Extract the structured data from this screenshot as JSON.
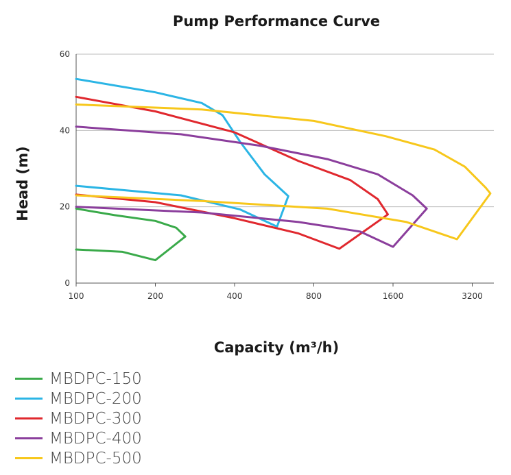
{
  "chart_data": {
    "type": "line",
    "title": "Pump Performance Curve",
    "xlabel": "Capacity (m³/h)",
    "ylabel": "Head (m)",
    "x_scale": "log2",
    "xlim": [
      100,
      4500
    ],
    "ylim": [
      0,
      60
    ],
    "x_ticks": [
      100,
      200,
      400,
      800,
      1600,
      3200
    ],
    "y_ticks": [
      0,
      20,
      40,
      60
    ],
    "grid": "horizontal",
    "legend_position": "bottom-left",
    "series": [
      {
        "name": "MBDPC-150",
        "color": "#3aaa4a",
        "points": [
          [
            100,
            19.5
          ],
          [
            140,
            17.8
          ],
          [
            200,
            16.3
          ],
          [
            240,
            14.5
          ],
          [
            260,
            12.2
          ],
          [
            200,
            6.0
          ],
          [
            150,
            8.2
          ],
          [
            100,
            8.8
          ]
        ]
      },
      {
        "name": "MBDPC-200",
        "color": "#2bb5e5",
        "points": [
          [
            100,
            53.5
          ],
          [
            200,
            50.0
          ],
          [
            300,
            47.2
          ],
          [
            360,
            44.0
          ],
          [
            420,
            37.0
          ],
          [
            520,
            28.5
          ],
          [
            640,
            22.8
          ],
          [
            580,
            14.8
          ],
          [
            420,
            19.3
          ],
          [
            250,
            23.0
          ],
          [
            100,
            25.5
          ]
        ]
      },
      {
        "name": "MBDPC-300",
        "color": "#e0282e",
        "points": [
          [
            100,
            48.8
          ],
          [
            200,
            45.0
          ],
          [
            400,
            39.5
          ],
          [
            700,
            32.0
          ],
          [
            1100,
            27.0
          ],
          [
            1400,
            22.0
          ],
          [
            1530,
            18.0
          ],
          [
            1000,
            9.0
          ],
          [
            700,
            13.0
          ],
          [
            400,
            17.0
          ],
          [
            200,
            21.2
          ],
          [
            100,
            23.2
          ]
        ]
      },
      {
        "name": "MBDPC-400",
        "color": "#8b3e9c",
        "points": [
          [
            100,
            41.0
          ],
          [
            250,
            39.0
          ],
          [
            500,
            36.0
          ],
          [
            900,
            32.5
          ],
          [
            1400,
            28.5
          ],
          [
            1900,
            23.0
          ],
          [
            2150,
            19.5
          ],
          [
            1600,
            9.5
          ],
          [
            1200,
            13.5
          ],
          [
            700,
            16.0
          ],
          [
            300,
            18.5
          ],
          [
            100,
            20.0
          ]
        ]
      },
      {
        "name": "MBDPC-500",
        "color": "#f7c71b",
        "points": [
          [
            100,
            46.8
          ],
          [
            300,
            45.5
          ],
          [
            800,
            42.5
          ],
          [
            1500,
            38.5
          ],
          [
            2300,
            35.0
          ],
          [
            3000,
            30.5
          ],
          [
            3600,
            25.0
          ],
          [
            3750,
            23.5
          ],
          [
            2800,
            11.5
          ],
          [
            1800,
            16.0
          ],
          [
            900,
            19.5
          ],
          [
            300,
            21.5
          ],
          [
            100,
            23.0
          ]
        ]
      }
    ]
  }
}
